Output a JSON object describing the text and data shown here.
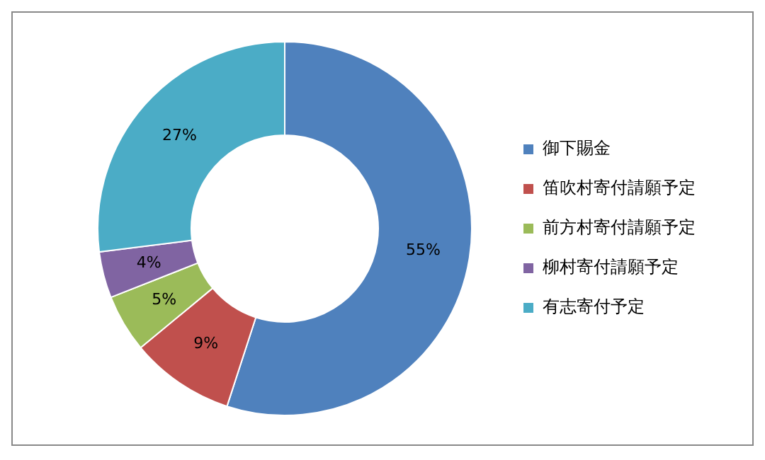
{
  "chart_data": {
    "type": "donut",
    "categories": [
      "御下賜金",
      "笛吹村寄付請願予定",
      "前方村寄付請願予定",
      "柳村寄付請願予定",
      "有志寄付予定"
    ],
    "values": [
      55,
      9,
      5,
      4,
      27
    ],
    "colors": [
      "#4f81bd",
      "#c0504d",
      "#9bbb59",
      "#8064a2",
      "#4bacc6"
    ],
    "value_labels": [
      "55%",
      "9%",
      "5%",
      "4%",
      "27%"
    ],
    "legend": "right"
  }
}
